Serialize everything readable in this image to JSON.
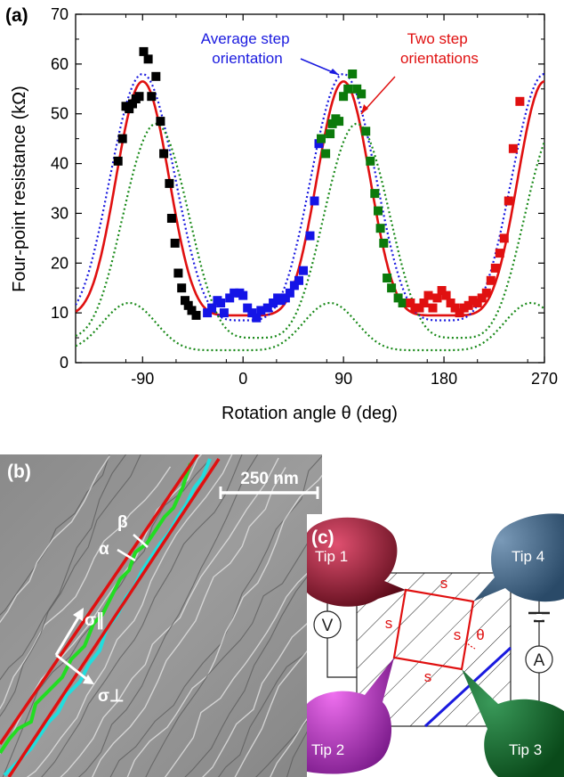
{
  "panel_a": {
    "label": "(a)",
    "chart_data": {
      "type": "scatter",
      "xlabel": "Rotation angle θ (deg)",
      "ylabel": "Four-point resistance (kΩ)",
      "xlim": [
        -150,
        270
      ],
      "ylim": [
        0,
        70
      ],
      "x_ticks": [
        -90,
        0,
        90,
        180,
        270
      ],
      "y_ticks": [
        0,
        10,
        20,
        30,
        40,
        50,
        60,
        70
      ],
      "grid": false,
      "annotations": [
        {
          "text": [
            "Average step",
            "orientation"
          ],
          "color": "#1a1adf"
        },
        {
          "text": [
            "Two step",
            "orientations"
          ],
          "color": "#e01010"
        }
      ],
      "series": [
        {
          "color": "#000000",
          "marker": "square",
          "points": [
            [
              -112,
              40.5
            ],
            [
              -108,
              45
            ],
            [
              -105,
              51.5
            ],
            [
              -102,
              51
            ],
            [
              -99,
              52
            ],
            [
              -96,
              53
            ],
            [
              -93,
              53.5
            ],
            [
              -89,
              62.5
            ],
            [
              -85,
              61
            ],
            [
              -82,
              53.5
            ],
            [
              -78,
              57.5
            ],
            [
              -74,
              48.5
            ],
            [
              -71,
              42
            ],
            [
              -66,
              36
            ],
            [
              -64,
              29
            ],
            [
              -61,
              24
            ],
            [
              -58,
              18
            ],
            [
              -55,
              15
            ],
            [
              -52,
              12.5
            ],
            [
              -49,
              11.5
            ],
            [
              -46,
              10.5
            ],
            [
              -42,
              9.5
            ]
          ]
        },
        {
          "color": "#1414e6",
          "marker": "square",
          "points": [
            [
              -32,
              10
            ],
            [
              -28,
              11
            ],
            [
              -23,
              12.5
            ],
            [
              -20,
              12
            ],
            [
              -17,
              10
            ],
            [
              -12,
              13
            ],
            [
              -8,
              14
            ],
            [
              -3,
              14
            ],
            [
              0,
              13.5
            ],
            [
              4,
              11
            ],
            [
              8,
              10
            ],
            [
              12,
              9
            ],
            [
              16,
              10.5
            ],
            [
              22,
              11
            ],
            [
              27,
              12
            ],
            [
              31,
              13
            ],
            [
              34,
              12.5
            ],
            [
              38,
              13
            ],
            [
              42,
              14
            ],
            [
              46,
              15.5
            ],
            [
              50,
              16.5
            ],
            [
              54,
              18.5
            ],
            [
              60,
              25.5
            ],
            [
              64,
              32.5
            ],
            [
              68,
              44
            ]
          ]
        },
        {
          "color": "#0b7a0b",
          "marker": "square",
          "points": [
            [
              70,
              45
            ],
            [
              74,
              42
            ],
            [
              78,
              46
            ],
            [
              80,
              48
            ],
            [
              83,
              49
            ],
            [
              86,
              48.5
            ],
            [
              90,
              53.5
            ],
            [
              94,
              55
            ],
            [
              98,
              58
            ],
            [
              102,
              55
            ],
            [
              106,
              54
            ],
            [
              110,
              46.5
            ],
            [
              114,
              40.5
            ],
            [
              118,
              34
            ],
            [
              121,
              30.5
            ],
            [
              123,
              27
            ],
            [
              126,
              24
            ],
            [
              129,
              17
            ],
            [
              133,
              15
            ],
            [
              139,
              13
            ],
            [
              143,
              12
            ]
          ]
        },
        {
          "color": "#e01010",
          "marker": "square",
          "points": [
            [
              150,
              12
            ],
            [
              154,
              11
            ],
            [
              158,
              11
            ],
            [
              162,
              12
            ],
            [
              166,
              13.5
            ],
            [
              170,
              11
            ],
            [
              174,
              13
            ],
            [
              178,
              14.5
            ],
            [
              182,
              13.5
            ],
            [
              186,
              12
            ],
            [
              190,
              11
            ],
            [
              194,
              10
            ],
            [
              198,
              11
            ],
            [
              202,
              11.5
            ],
            [
              206,
              12.5
            ],
            [
              210,
              12
            ],
            [
              214,
              13
            ],
            [
              218,
              14
            ],
            [
              222,
              16.5
            ],
            [
              226,
              19
            ],
            [
              230,
              22
            ],
            [
              234,
              25
            ],
            [
              238,
              32.5
            ],
            [
              242,
              43
            ],
            [
              248,
              52.5
            ]
          ]
        }
      ],
      "curves": [
        {
          "style": "solid",
          "color": "#e01010"
        },
        {
          "style": "dotted",
          "color": "#1a1adf"
        },
        {
          "style": "dotted",
          "color": "#1a8a1a"
        },
        {
          "style": "dotted",
          "color": "#1a8a1a"
        },
        {
          "style": "dotted",
          "color": "#1a8a1a"
        }
      ]
    }
  },
  "panel_b": {
    "label": "(b)",
    "scale_bar": "250 nm",
    "labels": {
      "alpha": "α",
      "beta": "β",
      "sigma_par": "σ∥",
      "sigma_perp": "σ⊥"
    }
  },
  "panel_c": {
    "label": "(c)",
    "tips": [
      "Tip 1",
      "Tip 2",
      "Tip 3",
      "Tip 4"
    ],
    "voltmeter": "V",
    "ammeter": "A",
    "side_label": "s",
    "angle_label": "θ"
  }
}
